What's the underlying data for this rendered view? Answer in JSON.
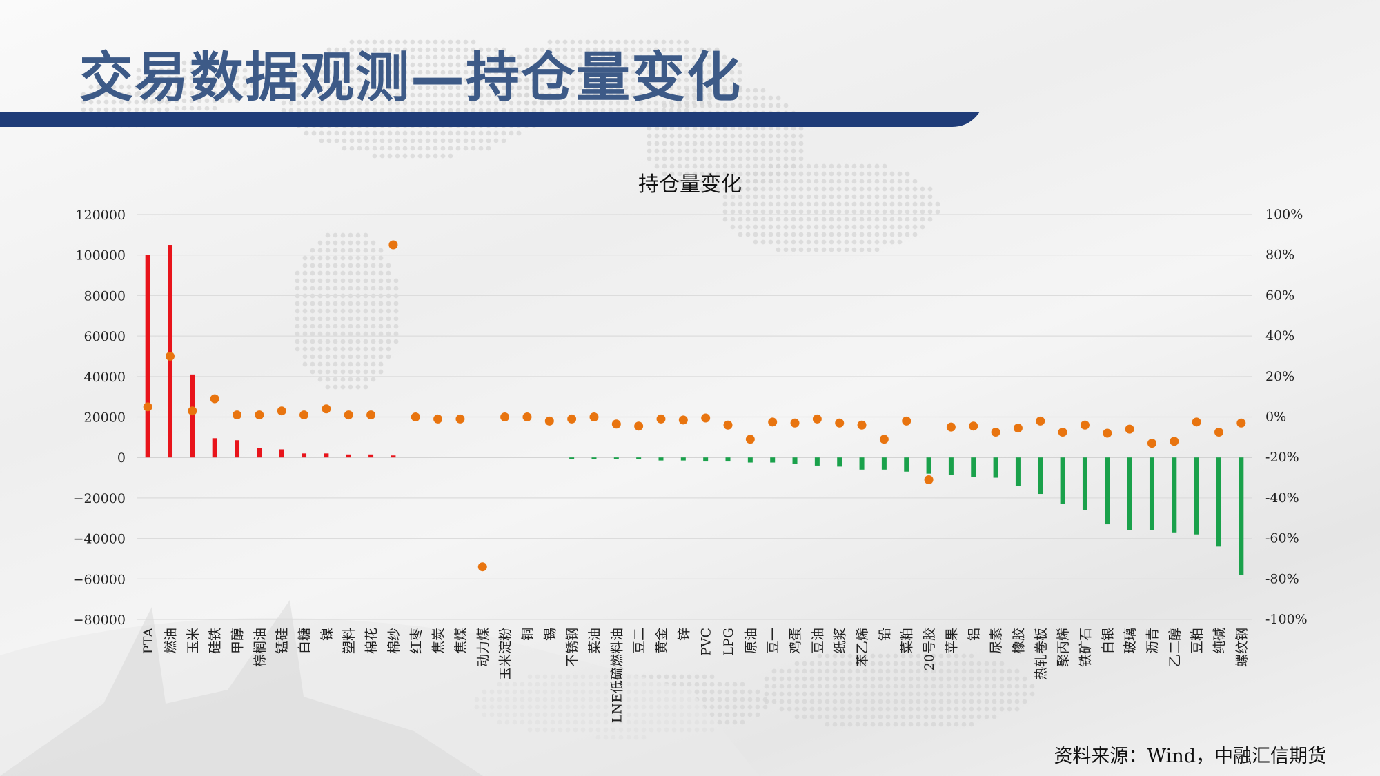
{
  "header": {
    "title": "交易数据观测—持仓量变化"
  },
  "source": "资料来源：Wind，中融汇信期货",
  "colors": {
    "positive_bar": "#e8141b",
    "negative_bar": "#1aa14b",
    "dot": "#e8740f",
    "title": "#3d5a87",
    "header_bar": "#1f3c78"
  },
  "chart_data": {
    "type": "bar",
    "title": "持仓量变化",
    "categories": [
      "PTA",
      "燃油",
      "玉米",
      "硅铁",
      "甲醇",
      "棕榈油",
      "锰硅",
      "白糖",
      "镍",
      "塑料",
      "棉花",
      "棉纱",
      "红枣",
      "焦炭",
      "焦煤",
      "动力煤",
      "玉米淀粉",
      "铜",
      "锡",
      "不锈钢",
      "菜油",
      "LNE低硫燃料油",
      "豆二",
      "黄金",
      "锌",
      "PVC",
      "LPG",
      "原油",
      "豆一",
      "鸡蛋",
      "豆油",
      "纸浆",
      "苯乙烯",
      "铅",
      "菜粕",
      "20号胶",
      "苹果",
      "铝",
      "尿素",
      "橡胶",
      "热轧卷板",
      "聚丙烯",
      "铁矿石",
      "白银",
      "玻璃",
      "沥青",
      "乙二醇",
      "豆粕",
      "纯碱",
      "螺纹钢"
    ],
    "series": [
      {
        "axis": "left",
        "values": [
          100000,
          105000,
          41000,
          9500,
          8500,
          4500,
          4000,
          2000,
          2000,
          1500,
          1500,
          1000,
          0,
          0,
          0,
          0,
          0,
          0,
          0,
          -500,
          -500,
          -500,
          -500,
          -1500,
          -1500,
          -2000,
          -2000,
          -2500,
          -2500,
          -3000,
          -4000,
          -4500,
          -6000,
          -6000,
          -7000,
          -8000,
          -8500,
          -9500,
          -10000,
          -14000,
          -18000,
          -23000,
          -26000,
          -33000,
          -36000,
          -36000,
          -37000,
          -38000,
          -44000,
          -58000
        ]
      },
      {
        "axis": "right",
        "values": [
          5,
          30,
          3,
          9,
          1,
          1,
          3,
          1,
          4,
          1,
          1,
          85,
          0,
          -1,
          -1,
          -74,
          0,
          0,
          -2,
          -1,
          0,
          -3.5,
          -4.5,
          -1,
          -1.5,
          -0.5,
          -4,
          -11,
          -2.5,
          -3,
          -1,
          -3,
          -4,
          -11,
          -2,
          -31,
          -5,
          -4.5,
          -7.5,
          -5.5,
          -2,
          -7.5,
          -4,
          -8,
          -6,
          -13,
          -12,
          -2.5,
          -7.5,
          -3
        ]
      }
    ],
    "y_left": {
      "min": -80000,
      "max": 120000,
      "step": 20000,
      "tick_labels": [
        "−80000",
        "−60000",
        "−40000",
        "−20000",
        "0",
        "20000",
        "40000",
        "60000",
        "80000",
        "100000",
        "120000"
      ]
    },
    "y_right": {
      "min": -100,
      "max": 100,
      "step": 20,
      "tick_labels": [
        "-100%",
        "-80%",
        "-60%",
        "-40%",
        "-20%",
        "0%",
        "20%",
        "40%",
        "60%",
        "80%",
        "100%"
      ]
    },
    "grid": true
  }
}
